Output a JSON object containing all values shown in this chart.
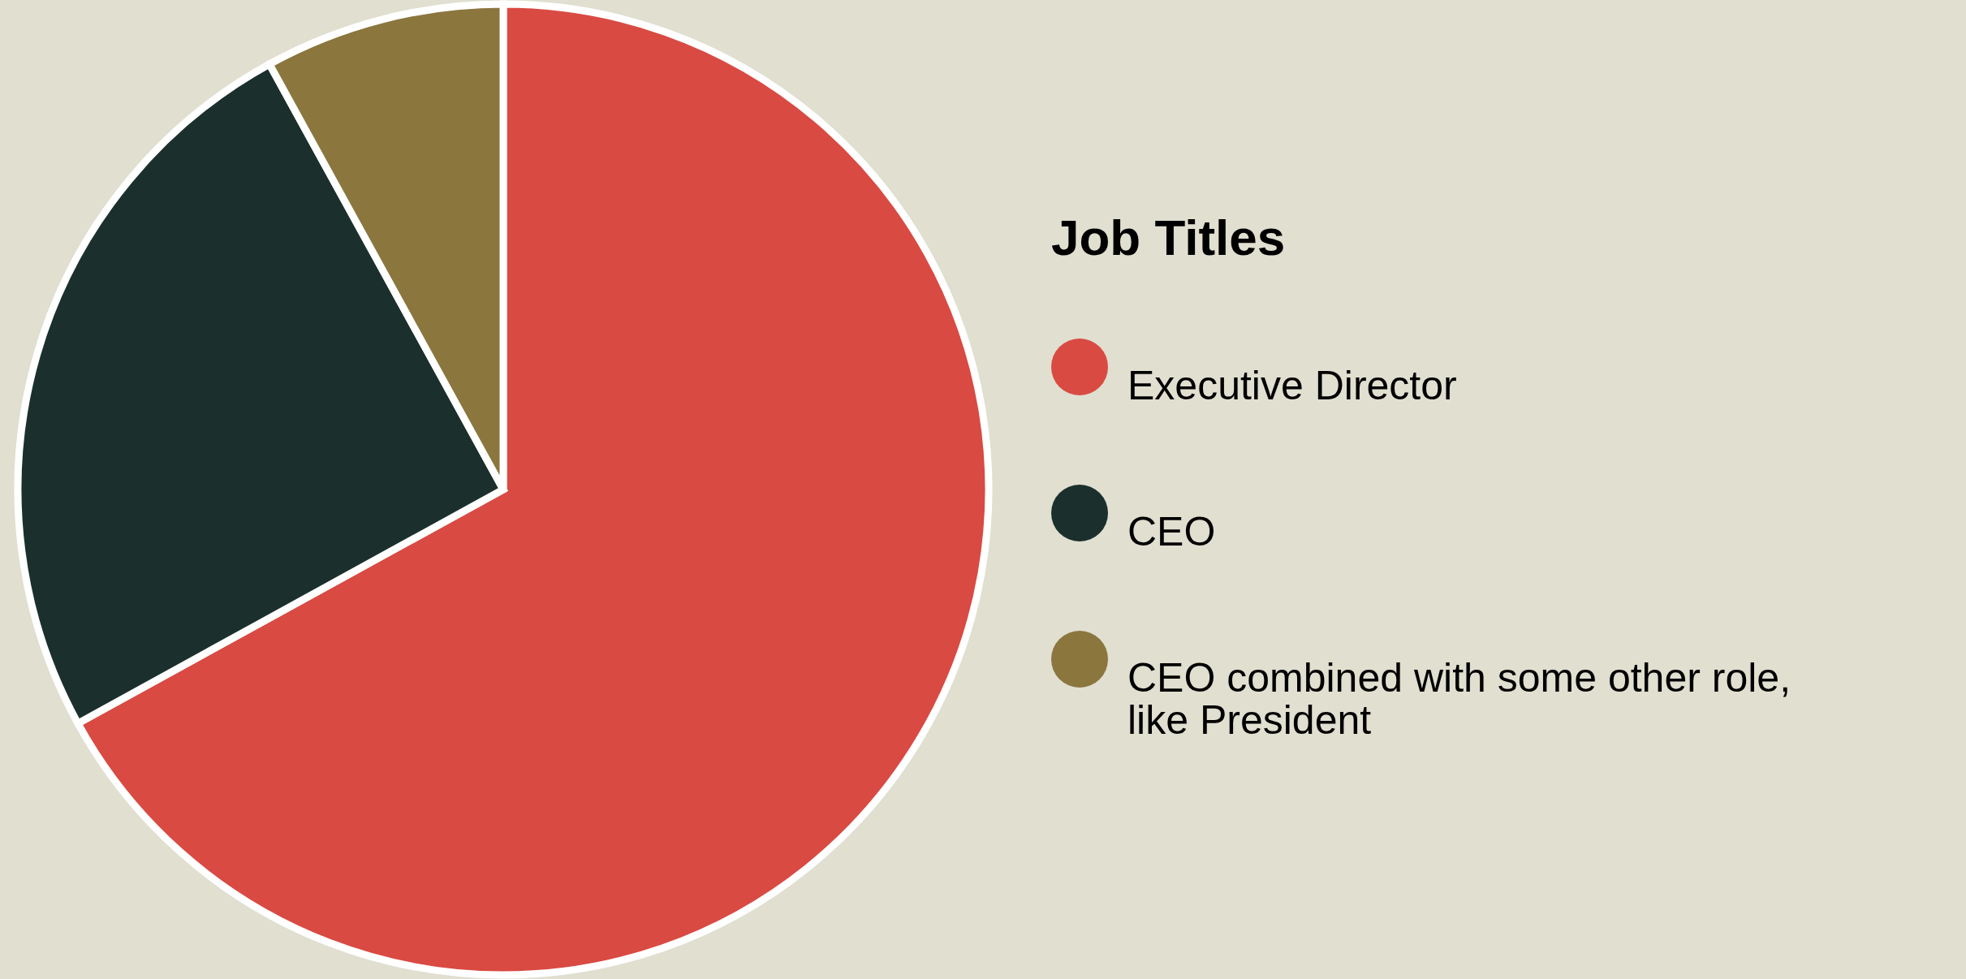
{
  "chart_data": {
    "type": "pie",
    "legend_title": "Job Titles",
    "legend": "right",
    "categories": [
      "Executive Director",
      "CEO",
      "CEO combined with some other role, like President"
    ],
    "values": [
      67,
      25,
      8
    ],
    "colors": [
      "#d94a42",
      "#1b302d",
      "#8b763e"
    ]
  }
}
